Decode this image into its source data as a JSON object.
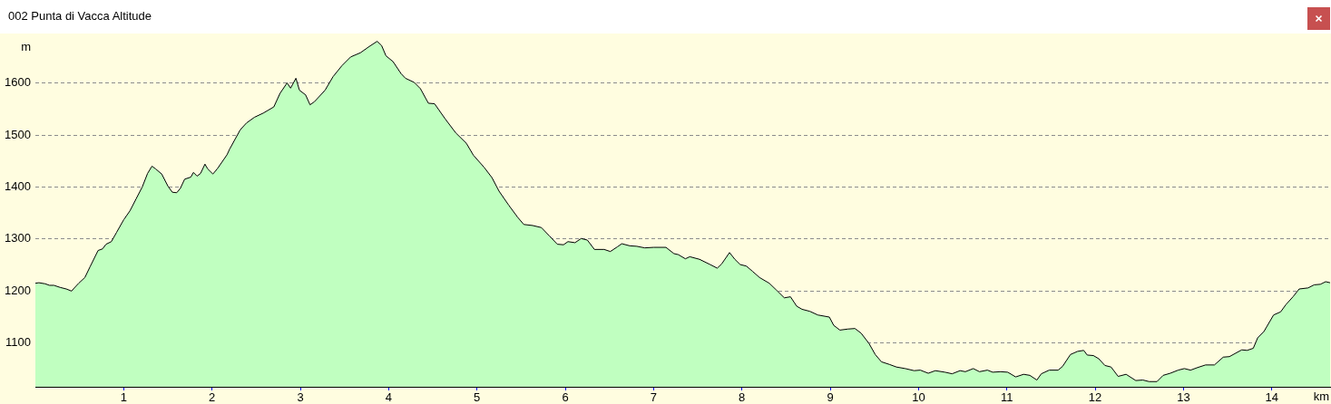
{
  "chart_data": {
    "type": "area",
    "title": "002 Punta di Vacca Altitude",
    "xlabel": "km",
    "ylabel": "m",
    "x": [
      0,
      0.04,
      0.11,
      0.16,
      0.21,
      0.28,
      0.35,
      0.41,
      0.43,
      0.49,
      0.56,
      0.62,
      0.71,
      0.76,
      0.8,
      0.86,
      0.92,
      1.0,
      1.07,
      1.14,
      1.21,
      1.27,
      1.32,
      1.36,
      1.43,
      1.5,
      1.55,
      1.6,
      1.64,
      1.69,
      1.76,
      1.79,
      1.83,
      1.87,
      1.92,
      1.95,
      2.01,
      2.06,
      2.17,
      2.2,
      2.32,
      2.39,
      2.48,
      2.58,
      2.7,
      2.77,
      2.85,
      2.89,
      2.95,
      2.99,
      3.06,
      3.11,
      3.16,
      3.28,
      3.37,
      3.47,
      3.57,
      3.68,
      3.78,
      3.87,
      3.92,
      3.97,
      4.05,
      4.14,
      4.19,
      4.29,
      4.36,
      4.45,
      4.52,
      4.64,
      4.76,
      4.88,
      4.96,
      5.08,
      5.17,
      5.25,
      5.36,
      5.46,
      5.53,
      5.63,
      5.73,
      5.82,
      5.91,
      5.98,
      6.03,
      6.11,
      6.18,
      6.25,
      6.33,
      6.44,
      6.51,
      6.59,
      6.64,
      6.73,
      6.81,
      6.9,
      7.0,
      7.14,
      7.23,
      7.28,
      7.36,
      7.41,
      7.52,
      7.64,
      7.72,
      7.77,
      7.86,
      7.92,
      7.98,
      8.05,
      8.12,
      8.2,
      8.31,
      8.39,
      8.48,
      8.55,
      8.62,
      8.68,
      8.77,
      8.86,
      8.99,
      9.04,
      9.11,
      9.2,
      9.28,
      9.35,
      9.44,
      9.51,
      9.58,
      9.67,
      9.75,
      9.85,
      9.95,
      10.02,
      10.11,
      10.19,
      10.3,
      10.38,
      10.47,
      10.53,
      10.62,
      10.69,
      10.78,
      10.84,
      10.93,
      11.01,
      11.1,
      11.19,
      11.26,
      11.34,
      11.39,
      11.48,
      11.58,
      11.63,
      11.72,
      11.8,
      11.87,
      11.91,
      11.98,
      12.04,
      12.11,
      12.18,
      12.26,
      12.35,
      12.46,
      12.54,
      12.61,
      12.7,
      12.77,
      12.85,
      12.94,
      13.01,
      13.08,
      13.16,
      13.25,
      13.35,
      13.45,
      13.52,
      13.66,
      13.72,
      13.79,
      13.84,
      13.91,
      14.02,
      14.1,
      14.16,
      14.24,
      14.31,
      14.41,
      14.48,
      14.55,
      14.61,
      14.66
    ],
    "series": [
      {
        "color": "#c0ffc0",
        "values": [
          1215,
          1216,
          1214,
          1211,
          1211,
          1207,
          1204,
          1200,
          1204,
          1215,
          1226,
          1247,
          1278,
          1281,
          1290,
          1295,
          1313,
          1337,
          1354,
          1377,
          1400,
          1426,
          1440,
          1435,
          1425,
          1402,
          1390,
          1389,
          1397,
          1415,
          1419,
          1428,
          1421,
          1426,
          1444,
          1435,
          1425,
          1435,
          1462,
          1473,
          1510,
          1523,
          1534,
          1542,
          1554,
          1580,
          1600,
          1590,
          1609,
          1586,
          1577,
          1558,
          1564,
          1586,
          1612,
          1633,
          1650,
          1658,
          1670,
          1680,
          1672,
          1652,
          1641,
          1618,
          1609,
          1601,
          1589,
          1561,
          1560,
          1531,
          1504,
          1484,
          1461,
          1438,
          1418,
          1392,
          1365,
          1342,
          1328,
          1326,
          1322,
          1306,
          1290,
          1289,
          1295,
          1293,
          1301,
          1298,
          1280,
          1280,
          1276,
          1285,
          1291,
          1287,
          1286,
          1283,
          1284,
          1284,
          1272,
          1270,
          1262,
          1266,
          1261,
          1251,
          1244,
          1252,
          1274,
          1261,
          1251,
          1248,
          1238,
          1226,
          1215,
          1202,
          1187,
          1189,
          1171,
          1165,
          1161,
          1154,
          1150,
          1134,
          1125,
          1127,
          1128,
          1119,
          1099,
          1078,
          1064,
          1059,
          1054,
          1051,
          1047,
          1048,
          1042,
          1047,
          1044,
          1041,
          1047,
          1045,
          1051,
          1045,
          1048,
          1044,
          1045,
          1044,
          1035,
          1040,
          1038,
          1029,
          1041,
          1048,
          1048,
          1055,
          1078,
          1084,
          1086,
          1077,
          1076,
          1070,
          1057,
          1054,
          1036,
          1040,
          1028,
          1029,
          1026,
          1026,
          1038,
          1042,
          1048,
          1051,
          1048,
          1053,
          1058,
          1058,
          1073,
          1074,
          1087,
          1086,
          1090,
          1110,
          1122,
          1154,
          1160,
          1174,
          1189,
          1204,
          1206,
          1212,
          1213,
          1218,
          1216
        ]
      }
    ],
    "xlim": [
      0,
      14.66
    ],
    "xticks": [
      1,
      2,
      3,
      4,
      5,
      6,
      7,
      8,
      9,
      10,
      11,
      12,
      13,
      14
    ],
    "ylim": [
      1016,
      1695
    ],
    "yticks": [
      1100,
      1200,
      1300,
      1400,
      1500,
      1600
    ],
    "grid": "y",
    "marker": "none"
  }
}
